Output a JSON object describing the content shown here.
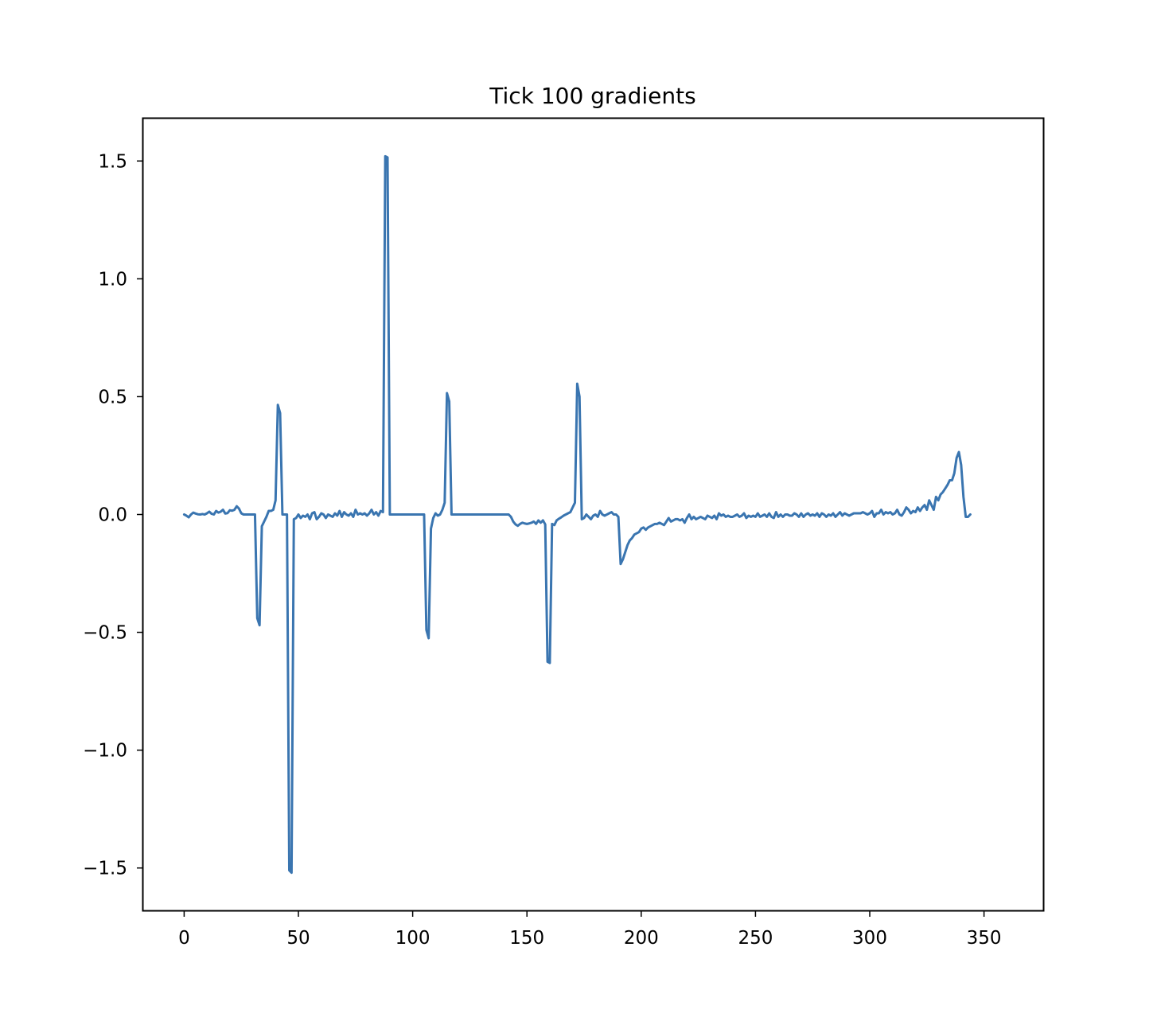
{
  "chart_data": {
    "type": "line",
    "title": "Tick 100 gradients",
    "xlabel": "",
    "ylabel": "",
    "xlim": [
      -17.9,
      375.9
    ],
    "ylim": [
      -1.68,
      1.68
    ],
    "x_ticks": [
      0,
      50,
      100,
      150,
      200,
      250,
      300,
      350
    ],
    "x_tick_labels": [
      "0",
      "50",
      "100",
      "150",
      "200",
      "250",
      "300",
      "350"
    ],
    "y_ticks": [
      -1.5,
      -1.0,
      -0.5,
      0.0,
      0.5,
      1.0,
      1.5
    ],
    "y_tick_labels": [
      "−1.5",
      "−1.0",
      "−0.5",
      "0.0",
      "0.5",
      "1.0",
      "1.5"
    ],
    "grid": false,
    "line_color": "#3a75b0",
    "series": [
      {
        "x_start": 0,
        "x_step": 1,
        "values": [
          0.0,
          -0.005,
          -0.012,
          0.0,
          0.008,
          0.004,
          0.001,
          0.0,
          0.002,
          0.0,
          0.005,
          0.012,
          0.003,
          0.0,
          0.015,
          0.008,
          0.012,
          0.02,
          0.004,
          0.006,
          0.018,
          0.016,
          0.02,
          0.035,
          0.025,
          0.005,
          0.0,
          0.0,
          0.0,
          0.0,
          0.0,
          0.0,
          -0.44,
          -0.47,
          -0.05,
          -0.03,
          -0.01,
          0.015,
          0.015,
          0.02,
          0.06,
          0.465,
          0.43,
          0.0,
          0.0,
          0.0,
          -1.51,
          -1.52,
          -0.02,
          -0.015,
          0.0,
          -0.015,
          -0.005,
          -0.01,
          0.0,
          -0.02,
          0.005,
          0.01,
          -0.02,
          -0.01,
          0.005,
          0.0,
          -0.015,
          0.0,
          -0.005,
          -0.01,
          0.005,
          -0.005,
          0.015,
          -0.01,
          0.01,
          0.0,
          -0.005,
          0.005,
          -0.01,
          0.02,
          0.0,
          0.005,
          0.0,
          0.005,
          -0.005,
          0.005,
          0.02,
          0.0,
          0.01,
          -0.005,
          0.015,
          0.01,
          1.52,
          1.515,
          0.0,
          0.0,
          0.0,
          0.0,
          0.0,
          0.0,
          0.0,
          0.0,
          0.0,
          0.0,
          0.0,
          0.0,
          0.0,
          0.0,
          0.0,
          0.0,
          -0.49,
          -0.525,
          -0.06,
          -0.015,
          0.005,
          -0.005,
          0.0,
          0.02,
          0.05,
          0.515,
          0.48,
          0.0,
          0.0,
          0.0,
          0.0,
          0.0,
          0.0,
          0.0,
          0.0,
          0.0,
          0.0,
          0.0,
          0.0,
          0.0,
          0.0,
          0.0,
          0.0,
          0.0,
          0.0,
          0.0,
          0.0,
          0.0,
          0.0,
          0.0,
          0.0,
          0.0,
          0.0,
          -0.01,
          -0.03,
          -0.042,
          -0.048,
          -0.04,
          -0.035,
          -0.038,
          -0.04,
          -0.038,
          -0.035,
          -0.03,
          -0.04,
          -0.025,
          -0.035,
          -0.025,
          -0.042,
          -0.625,
          -0.63,
          -0.04,
          -0.045,
          -0.025,
          -0.018,
          -0.012,
          -0.005,
          0.0,
          0.005,
          0.01,
          0.03,
          0.05,
          0.555,
          0.5,
          -0.02,
          -0.015,
          0.0,
          -0.01,
          -0.02,
          -0.005,
          0.0,
          -0.01,
          0.015,
          0.0,
          -0.005,
          0.0,
          0.005,
          0.01,
          0.0,
          0.0,
          -0.01,
          -0.21,
          -0.19,
          -0.16,
          -0.13,
          -0.11,
          -0.1,
          -0.085,
          -0.08,
          -0.075,
          -0.06,
          -0.055,
          -0.065,
          -0.055,
          -0.05,
          -0.045,
          -0.04,
          -0.04,
          -0.035,
          -0.04,
          -0.045,
          -0.03,
          -0.015,
          -0.03,
          -0.025,
          -0.02,
          -0.02,
          -0.025,
          -0.02,
          -0.035,
          -0.015,
          0.0,
          -0.02,
          -0.01,
          -0.02,
          -0.015,
          -0.01,
          -0.015,
          -0.02,
          -0.005,
          -0.01,
          -0.015,
          -0.005,
          -0.02,
          0.005,
          -0.005,
          0.0,
          -0.01,
          -0.005,
          -0.01,
          -0.01,
          -0.005,
          0.0,
          -0.01,
          -0.005,
          0.005,
          -0.015,
          -0.005,
          -0.01,
          -0.005,
          -0.01,
          0.005,
          -0.01,
          -0.005,
          0.0,
          -0.01,
          0.005,
          -0.01,
          -0.015,
          0.01,
          -0.01,
          0.0,
          -0.01,
          0.0,
          0.0,
          -0.005,
          -0.005,
          0.005,
          0.0,
          -0.01,
          0.005,
          -0.01,
          0.0,
          0.005,
          -0.005,
          0.0,
          -0.005,
          0.005,
          -0.01,
          0.005,
          0.0,
          -0.01,
          0.0,
          -0.005,
          0.005,
          -0.01,
          0.0,
          0.01,
          -0.005,
          0.005,
          0.0,
          -0.005,
          0.0,
          0.005,
          0.005,
          0.005,
          0.005,
          0.01,
          0.005,
          0.0,
          0.005,
          0.015,
          -0.01,
          0.005,
          0.005,
          0.02,
          0.0,
          0.01,
          0.005,
          0.01,
          0.0,
          0.005,
          0.02,
          0.0,
          -0.005,
          0.01,
          0.03,
          0.02,
          0.005,
          0.015,
          0.01,
          0.03,
          0.015,
          0.03,
          0.04,
          0.02,
          0.06,
          0.04,
          0.02,
          0.075,
          0.06,
          0.085,
          0.095,
          0.11,
          0.125,
          0.145,
          0.145,
          0.175,
          0.24,
          0.265,
          0.21,
          0.075,
          -0.01,
          -0.01,
          0.0
        ]
      }
    ]
  }
}
